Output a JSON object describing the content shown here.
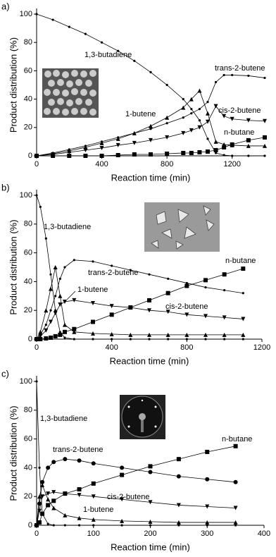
{
  "chart_data": [
    {
      "type": "line",
      "panel_label": "a)",
      "y_label": "Product distribution (%)",
      "x_label": "Reaction time  (min)",
      "xlim": [
        0,
        1400
      ],
      "ylim": [
        0,
        100
      ],
      "xticks": [
        0,
        400,
        800,
        1200
      ],
      "yticks": [
        0,
        20,
        40,
        60,
        80,
        100
      ],
      "x": [
        0,
        100,
        200,
        300,
        400,
        500,
        600,
        700,
        800,
        900,
        950,
        1000,
        1050,
        1100,
        1150,
        1200,
        1300,
        1400
      ],
      "series": [
        {
          "name": "1,3-butadiene",
          "color": "#000000",
          "marker": "dot",
          "values": [
            100,
            96,
            91,
            86,
            80,
            74,
            67,
            59,
            50,
            40,
            33,
            25,
            12,
            2,
            0.5,
            0,
            0,
            0
          ]
        },
        {
          "name": "1-butene",
          "color": "#000000",
          "marker": "triangle",
          "values": [
            0,
            1.5,
            3.5,
            6,
            9,
            12,
            16,
            21,
            27,
            34,
            40,
            46,
            30,
            10,
            8,
            7.5,
            7,
            7
          ]
        },
        {
          "name": "trans-2-butene",
          "color": "#000000",
          "marker": "dot",
          "values": [
            0,
            2,
            4.5,
            7,
            10,
            13,
            16,
            19,
            23,
            27,
            30,
            33,
            38,
            52,
            57,
            57,
            56.5,
            55
          ]
        },
        {
          "name": "cis-2-butene",
          "color": "#000000",
          "marker": "down",
          "values": [
            0,
            1,
            2.5,
            4,
            5.5,
            7.5,
            9,
            11,
            13,
            16,
            18,
            20,
            24,
            35,
            28,
            26,
            25,
            24.5
          ]
        },
        {
          "name": "n-butane",
          "color": "#000000",
          "marker": "square",
          "values": [
            0,
            0,
            0,
            0,
            0,
            0.5,
            1,
            1,
            1.5,
            2,
            2,
            2.5,
            3,
            4,
            6,
            8,
            11,
            13
          ]
        }
      ]
    },
    {
      "type": "line",
      "panel_label": "b)",
      "y_label": "Product distribution (%)",
      "x_label": "Reaction time  (min)",
      "xlim": [
        0,
        1200
      ],
      "ylim": [
        0,
        100
      ],
      "xticks": [
        0,
        400,
        800,
        1200
      ],
      "yticks": [
        0,
        20,
        40,
        60,
        80,
        100
      ],
      "x": [
        0,
        20,
        50,
        75,
        100,
        125,
        150,
        200,
        300,
        400,
        500,
        600,
        700,
        800,
        900,
        1000,
        1100
      ],
      "series": [
        {
          "name": "1,3-butadiene",
          "color": "#000000",
          "marker": "dot",
          "values": [
            100,
            92,
            70,
            45,
            20,
            5,
            1,
            0,
            0,
            0,
            0,
            0,
            0,
            0,
            0,
            0,
            0
          ]
        },
        {
          "name": "1-butene",
          "color": "#000000",
          "marker": "triangle",
          "values": [
            0,
            5,
            20,
            35,
            50,
            30,
            10,
            5,
            4,
            3.5,
            3,
            3,
            3,
            3,
            3,
            3,
            3
          ]
        },
        {
          "name": "trans-2-butene",
          "color": "#000000",
          "marker": "dot",
          "values": [
            0,
            3,
            10,
            20,
            30,
            42,
            50,
            55,
            54,
            51,
            48,
            45,
            42,
            39,
            36,
            34,
            32
          ]
        },
        {
          "name": "cis-2-butene",
          "color": "#000000",
          "marker": "down",
          "values": [
            0,
            2,
            6,
            12,
            18,
            24,
            26,
            27,
            25,
            23,
            22,
            20,
            19,
            17,
            16,
            15,
            14
          ]
        },
        {
          "name": "n-butane",
          "color": "#000000",
          "marker": "square",
          "values": [
            0,
            0,
            0.5,
            1,
            2,
            3,
            5,
            7,
            12,
            17,
            22,
            27,
            32,
            37,
            41,
            45,
            49
          ]
        }
      ]
    },
    {
      "type": "line",
      "panel_label": "c)",
      "y_label": "Product distribution (%)",
      "x_label": "Reaction time  (min)",
      "xlim": [
        0,
        400
      ],
      "ylim": [
        0,
        100
      ],
      "xticks": [
        0,
        100,
        200,
        300,
        400
      ],
      "yticks": [
        0,
        20,
        40,
        60,
        80,
        100
      ],
      "x": [
        0,
        5,
        10,
        20,
        30,
        50,
        75,
        100,
        150,
        200,
        250,
        300,
        350
      ],
      "series": [
        {
          "name": "1,3-butadiene",
          "color": "#000000",
          "marker": "dot",
          "values": [
            100,
            40,
            8,
            1,
            0,
            0,
            0,
            0,
            0,
            0,
            0,
            0,
            0
          ]
        },
        {
          "name": "1-butene",
          "color": "#000000",
          "marker": "triangle",
          "values": [
            0,
            20,
            28,
            18,
            12,
            7,
            5,
            4,
            3,
            2.5,
            2,
            2,
            2
          ]
        },
        {
          "name": "trans-2-butene",
          "color": "#000000",
          "marker": "circle",
          "values": [
            0,
            15,
            30,
            40,
            44,
            46,
            45,
            43,
            40,
            37,
            34,
            32,
            30
          ]
        },
        {
          "name": "cis-2-butene",
          "color": "#000000",
          "marker": "down",
          "values": [
            0,
            10,
            20,
            22,
            23,
            22,
            21,
            20,
            18,
            16,
            14,
            13,
            12
          ]
        },
        {
          "name": "n-butane",
          "color": "#000000",
          "marker": "square",
          "values": [
            0,
            2,
            8,
            14,
            17,
            22,
            25,
            29,
            35,
            41,
            46,
            51,
            55
          ]
        }
      ]
    }
  ]
}
